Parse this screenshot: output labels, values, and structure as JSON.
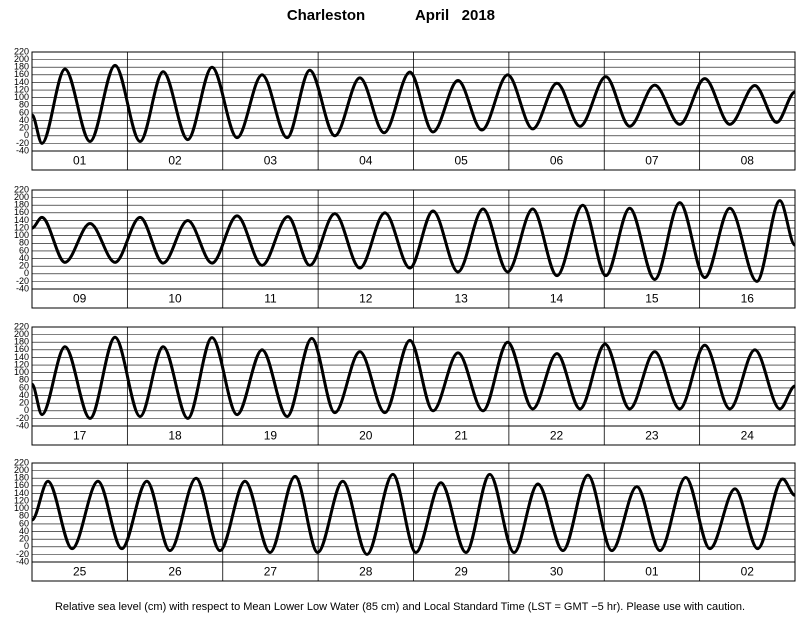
{
  "title": "Charleston",
  "date": "April   2018",
  "footer": "Relative sea level (cm) with respect to Mean Lower Low Water (85 cm) and Local Standard Time (LST = GMT −5 hr). Please use with caution.",
  "chart_data": [
    {
      "type": "line",
      "color": "#000000",
      "grid": true,
      "xlim": [
        0,
        192
      ],
      "ylim": [
        -40,
        220
      ],
      "yticks": [
        -40,
        -20,
        0,
        20,
        40,
        60,
        80,
        100,
        120,
        140,
        160,
        180,
        200,
        220
      ],
      "xticks": [
        {
          "value": 12,
          "label": "01"
        },
        {
          "value": 36,
          "label": "02"
        },
        {
          "value": 60,
          "label": "03"
        },
        {
          "value": 84,
          "label": "04"
        },
        {
          "value": 108,
          "label": "05"
        },
        {
          "value": 132,
          "label": "06"
        },
        {
          "value": 156,
          "label": "07"
        },
        {
          "value": 180,
          "label": "08"
        }
      ],
      "x": [
        0,
        2.5,
        8.3,
        14.6,
        20.9,
        27.2,
        33.0,
        39.2,
        45.3,
        51.6,
        57.9,
        64.2,
        69.9,
        76.2,
        82.5,
        88.6,
        95.1,
        100.9,
        107.2,
        113.2,
        119.7,
        126.0,
        132.1,
        137.9,
        144.4,
        150.4,
        156.7,
        163.0,
        169.3,
        175.6,
        181.9,
        187.4,
        192
      ],
      "values": [
        55,
        -20,
        175,
        -15,
        185,
        -15,
        168,
        -10,
        180,
        -5,
        160,
        -5,
        172,
        0,
        152,
        8,
        167,
        10,
        145,
        15,
        160,
        18,
        138,
        25,
        155,
        25,
        133,
        30,
        150,
        30,
        132,
        35,
        115
      ]
    },
    {
      "type": "line",
      "color": "#000000",
      "grid": true,
      "xlim": [
        0,
        192
      ],
      "ylim": [
        -40,
        220
      ],
      "yticks": [
        -40,
        -20,
        0,
        20,
        40,
        60,
        80,
        100,
        120,
        140,
        160,
        180,
        200,
        220
      ],
      "xticks": [
        {
          "value": 12,
          "label": "09"
        },
        {
          "value": 36,
          "label": "10"
        },
        {
          "value": 60,
          "label": "11"
        },
        {
          "value": 84,
          "label": "12"
        },
        {
          "value": 108,
          "label": "13"
        },
        {
          "value": 132,
          "label": "14"
        },
        {
          "value": 156,
          "label": "15"
        },
        {
          "value": 180,
          "label": "16"
        }
      ],
      "x": [
        0,
        2.5,
        8.3,
        14.6,
        20.9,
        27.2,
        33.0,
        39.2,
        45.3,
        51.6,
        57.9,
        64.4,
        69.9,
        76.2,
        82.5,
        88.8,
        95.1,
        100.9,
        107.2,
        113.5,
        119.7,
        126.0,
        132.1,
        138.6,
        144.4,
        150.4,
        156.7,
        163.0,
        169.3,
        175.6,
        182.4,
        188.2,
        192
      ],
      "values": [
        120,
        148,
        30,
        132,
        30,
        148,
        28,
        140,
        28,
        152,
        22,
        150,
        22,
        158,
        15,
        160,
        15,
        165,
        5,
        170,
        5,
        170,
        -5,
        180,
        -5,
        172,
        -15,
        187,
        -10,
        172,
        -20,
        192,
        75
      ]
    },
    {
      "type": "line",
      "color": "#000000",
      "grid": true,
      "xlim": [
        0,
        192
      ],
      "ylim": [
        -40,
        220
      ],
      "yticks": [
        -40,
        -20,
        0,
        20,
        40,
        60,
        80,
        100,
        120,
        140,
        160,
        180,
        200,
        220
      ],
      "xticks": [
        {
          "value": 12,
          "label": "17"
        },
        {
          "value": 36,
          "label": "18"
        },
        {
          "value": 60,
          "label": "19"
        },
        {
          "value": 84,
          "label": "20"
        },
        {
          "value": 108,
          "label": "21"
        },
        {
          "value": 132,
          "label": "22"
        },
        {
          "value": 156,
          "label": "23"
        },
        {
          "value": 180,
          "label": "24"
        }
      ],
      "x": [
        0,
        2.5,
        8.3,
        14.6,
        20.9,
        27.2,
        33.0,
        39.2,
        45.3,
        51.6,
        57.9,
        64.2,
        70.4,
        76.2,
        82.5,
        88.8,
        95.1,
        100.9,
        107.2,
        113.5,
        119.7,
        126.0,
        132.1,
        137.9,
        144.2,
        150.4,
        156.7,
        163.0,
        169.3,
        175.6,
        181.9,
        188.2,
        192
      ],
      "values": [
        70,
        -10,
        168,
        -20,
        193,
        -15,
        168,
        -20,
        192,
        -10,
        160,
        -15,
        190,
        -5,
        155,
        -5,
        185,
        0,
        152,
        0,
        180,
        5,
        150,
        5,
        175,
        5,
        155,
        5,
        172,
        5,
        160,
        5,
        65
      ]
    },
    {
      "type": "line",
      "color": "#000000",
      "grid": true,
      "xlim": [
        0,
        192
      ],
      "ylim": [
        -40,
        220
      ],
      "yticks": [
        -40,
        -20,
        0,
        20,
        40,
        60,
        80,
        100,
        120,
        140,
        160,
        180,
        200,
        220
      ],
      "xticks": [
        {
          "value": 12,
          "label": "25"
        },
        {
          "value": 36,
          "label": "26"
        },
        {
          "value": 60,
          "label": "27"
        },
        {
          "value": 84,
          "label": "28"
        },
        {
          "value": 108,
          "label": "29"
        },
        {
          "value": 132,
          "label": "30"
        },
        {
          "value": 156,
          "label": "01"
        },
        {
          "value": 180,
          "label": "02"
        }
      ],
      "x": [
        0,
        4.0,
        10.1,
        16.6,
        22.6,
        28.9,
        34.7,
        41.3,
        47.3,
        53.6,
        59.9,
        66.2,
        71.9,
        78.2,
        84.3,
        90.8,
        96.6,
        102.9,
        109.2,
        115.2,
        121.3,
        127.3,
        133.6,
        139.9,
        145.9,
        152.2,
        158.0,
        164.5,
        170.6,
        176.9,
        182.6,
        188.9,
        192
      ],
      "values": [
        70,
        172,
        -5,
        172,
        -5,
        172,
        -10,
        180,
        -10,
        172,
        -15,
        185,
        -15,
        172,
        -20,
        190,
        -15,
        168,
        -15,
        190,
        -15,
        165,
        -10,
        188,
        -10,
        158,
        -10,
        182,
        -5,
        152,
        -5,
        178,
        135
      ]
    }
  ]
}
